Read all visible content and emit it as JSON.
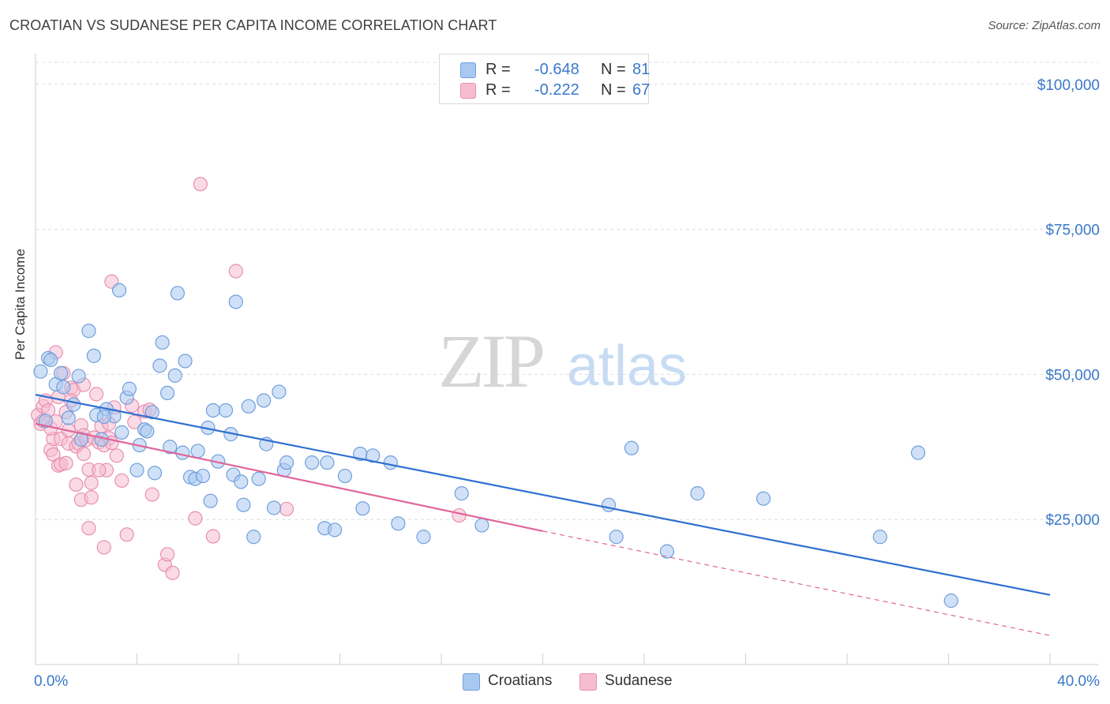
{
  "title": "CROATIAN VS SUDANESE PER CAPITA INCOME CORRELATION CHART",
  "source": "Source: ZipAtlas.com",
  "watermark": {
    "zip": "ZIP",
    "atlas": "atlas"
  },
  "legend": {
    "croatians": {
      "r_label": "R =",
      "r_value": "-0.648",
      "n_label": "N =",
      "n_value": "81"
    },
    "sudanese": {
      "r_label": "R =",
      "r_value": "-0.222",
      "n_label": "N =",
      "n_value": "67"
    }
  },
  "bottom_legend": {
    "croatians": "Croatians",
    "sudanese": "Sudanese"
  },
  "colors": {
    "croatians_fill": "#a9c8f0",
    "croatians_stroke": "#6f9fdc",
    "croatians_line": "#2f6fd0",
    "sudanese_fill": "#f6bdd0",
    "sudanese_stroke": "#e88fb0",
    "sudanese_line": "#e0659a",
    "axis_text": "#3a78c9",
    "grid": "#dcdcdc"
  },
  "chart_data": {
    "type": "scatter",
    "title": "CROATIAN VS SUDANESE PER CAPITA INCOME CORRELATION CHART",
    "xlabel": "",
    "ylabel": "Per Capita Income",
    "xlim": [
      0,
      40
    ],
    "ylim": [
      0,
      105000
    ],
    "x_tick_labels": {
      "left": "0.0%",
      "right": "40.0%"
    },
    "y_ticks": [
      {
        "value": 25000,
        "label": "$25,000"
      },
      {
        "value": 50000,
        "label": "$50,000"
      },
      {
        "value": 75000,
        "label": "$75,000"
      },
      {
        "value": 100000,
        "label": "$100,000"
      }
    ],
    "series": [
      {
        "name": "Croatians",
        "trend": {
          "x0": 0,
          "y0": 46500,
          "x1": 40,
          "y1": 12000
        },
        "points": [
          [
            0.2,
            50500
          ],
          [
            0.5,
            52800
          ],
          [
            0.6,
            52500
          ],
          [
            0.8,
            48300
          ],
          [
            1.0,
            50200
          ],
          [
            1.1,
            47800
          ],
          [
            1.3,
            42500
          ],
          [
            1.5,
            44800
          ],
          [
            1.7,
            49700
          ],
          [
            2.1,
            57500
          ],
          [
            2.3,
            53200
          ],
          [
            2.4,
            43000
          ],
          [
            2.6,
            38800
          ],
          [
            2.8,
            44000
          ],
          [
            3.1,
            42800
          ],
          [
            3.3,
            64500
          ],
          [
            3.4,
            40000
          ],
          [
            3.6,
            46000
          ],
          [
            3.7,
            47500
          ],
          [
            4.0,
            33500
          ],
          [
            4.1,
            37800
          ],
          [
            4.3,
            40500
          ],
          [
            4.6,
            43500
          ],
          [
            4.7,
            33000
          ],
          [
            4.9,
            51500
          ],
          [
            5.0,
            55500
          ],
          [
            5.2,
            46800
          ],
          [
            5.3,
            37500
          ],
          [
            5.5,
            49800
          ],
          [
            5.6,
            64000
          ],
          [
            5.8,
            36500
          ],
          [
            5.9,
            52300
          ],
          [
            6.1,
            32300
          ],
          [
            6.3,
            32000
          ],
          [
            6.4,
            36800
          ],
          [
            6.6,
            32500
          ],
          [
            6.8,
            40800
          ],
          [
            6.9,
            28200
          ],
          [
            7.0,
            43800
          ],
          [
            7.2,
            35000
          ],
          [
            7.5,
            43800
          ],
          [
            7.7,
            39700
          ],
          [
            7.8,
            32700
          ],
          [
            7.9,
            62500
          ],
          [
            8.1,
            31500
          ],
          [
            8.2,
            27500
          ],
          [
            8.4,
            44500
          ],
          [
            8.6,
            22000
          ],
          [
            8.8,
            32000
          ],
          [
            9.0,
            45500
          ],
          [
            9.1,
            38000
          ],
          [
            9.4,
            27000
          ],
          [
            9.6,
            47000
          ],
          [
            9.8,
            33500
          ],
          [
            9.9,
            34800
          ],
          [
            10.9,
            34800
          ],
          [
            11.4,
            23500
          ],
          [
            11.5,
            34800
          ],
          [
            11.8,
            23200
          ],
          [
            12.2,
            32500
          ],
          [
            12.8,
            36300
          ],
          [
            12.9,
            26900
          ],
          [
            13.3,
            36000
          ],
          [
            14.0,
            34800
          ],
          [
            14.3,
            24300
          ],
          [
            15.3,
            22000
          ],
          [
            16.8,
            29500
          ],
          [
            17.6,
            24000
          ],
          [
            22.6,
            27500
          ],
          [
            22.9,
            22000
          ],
          [
            23.5,
            37300
          ],
          [
            24.9,
            19500
          ],
          [
            26.1,
            29500
          ],
          [
            28.7,
            28600
          ],
          [
            33.3,
            22000
          ],
          [
            34.8,
            36500
          ],
          [
            36.1,
            11000
          ],
          [
            0.4,
            42000
          ],
          [
            1.8,
            38800
          ],
          [
            2.7,
            42700
          ],
          [
            4.4,
            40200
          ]
        ]
      },
      {
        "name": "Sudanese",
        "trend": {
          "x0": 0,
          "y0": 41500,
          "x1": 20,
          "y1": 23000,
          "dash_x1": 40,
          "dash_y1": 5000
        },
        "points": [
          [
            0.1,
            43000
          ],
          [
            0.2,
            41500
          ],
          [
            0.3,
            42000
          ],
          [
            0.3,
            44500
          ],
          [
            0.4,
            45500
          ],
          [
            0.5,
            43800
          ],
          [
            0.6,
            37000
          ],
          [
            0.7,
            38900
          ],
          [
            0.7,
            36200
          ],
          [
            0.8,
            53800
          ],
          [
            0.9,
            34300
          ],
          [
            1.0,
            34500
          ],
          [
            1.0,
            38900
          ],
          [
            1.1,
            50200
          ],
          [
            1.2,
            43500
          ],
          [
            1.3,
            38100
          ],
          [
            1.3,
            40400
          ],
          [
            1.4,
            47700
          ],
          [
            1.5,
            47300
          ],
          [
            1.6,
            37600
          ],
          [
            1.6,
            31000
          ],
          [
            1.7,
            38100
          ],
          [
            1.8,
            41200
          ],
          [
            1.8,
            28400
          ],
          [
            1.9,
            39500
          ],
          [
            1.9,
            36300
          ],
          [
            2.0,
            38700
          ],
          [
            2.1,
            23500
          ],
          [
            2.1,
            33600
          ],
          [
            2.2,
            31300
          ],
          [
            2.2,
            28800
          ],
          [
            2.3,
            39100
          ],
          [
            2.4,
            46600
          ],
          [
            2.5,
            38300
          ],
          [
            2.6,
            41100
          ],
          [
            2.7,
            37800
          ],
          [
            2.7,
            20200
          ],
          [
            2.8,
            33500
          ],
          [
            2.9,
            39000
          ],
          [
            3.0,
            38200
          ],
          [
            3.1,
            44300
          ],
          [
            3.2,
            36000
          ],
          [
            3.4,
            31700
          ],
          [
            3.6,
            22400
          ],
          [
            3.8,
            44600
          ],
          [
            3.0,
            66000
          ],
          [
            4.3,
            43600
          ],
          [
            4.6,
            29300
          ],
          [
            5.1,
            17200
          ],
          [
            5.2,
            19000
          ],
          [
            5.4,
            15800
          ],
          [
            6.3,
            25200
          ],
          [
            6.5,
            82800
          ],
          [
            7.0,
            22100
          ],
          [
            7.9,
            67800
          ],
          [
            9.9,
            26800
          ],
          [
            16.7,
            25700
          ],
          [
            0.6,
            40700
          ],
          [
            1.2,
            34700
          ],
          [
            2.9,
            41500
          ],
          [
            1.4,
            45500
          ],
          [
            0.9,
            46100
          ],
          [
            2.5,
            33500
          ],
          [
            3.9,
            41800
          ],
          [
            4.5,
            43900
          ],
          [
            0.8,
            41900
          ],
          [
            1.9,
            48200
          ]
        ]
      }
    ]
  }
}
